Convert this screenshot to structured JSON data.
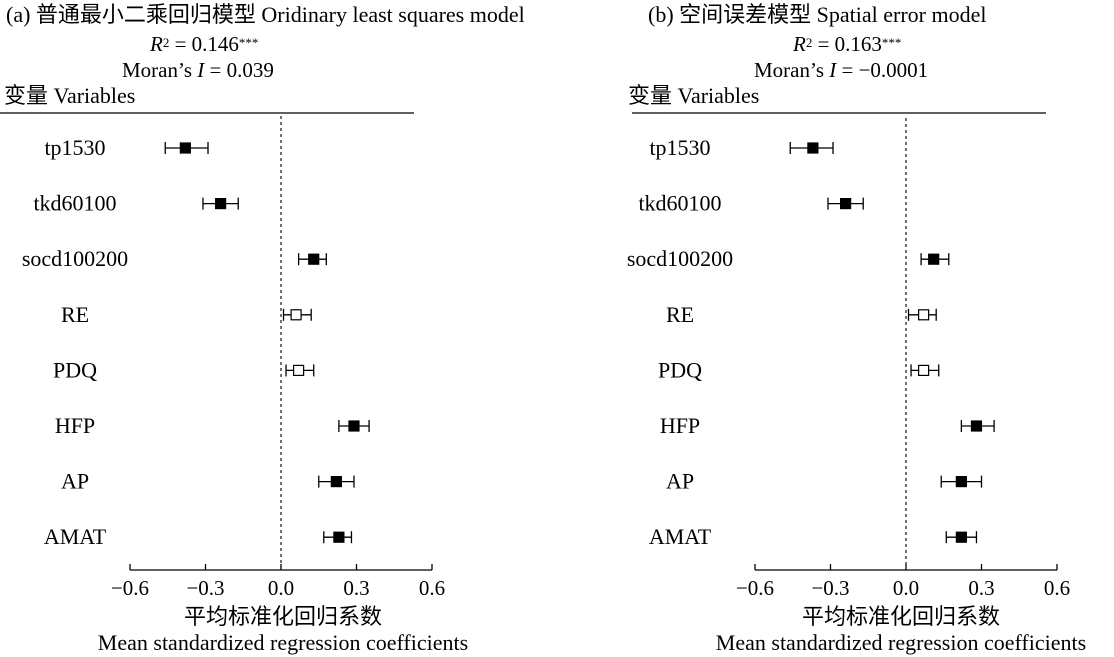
{
  "chart_data": [
    {
      "type": "forest",
      "panel_label": "(a)",
      "title": "普通最小二乘回归模型 Oridinary least squares model",
      "r2": {
        "label": "R",
        "sup": "2",
        "eq": " = 0.146",
        "stars": "***"
      },
      "moran": {
        "label": "Moran’s ",
        "var": "I",
        "eq": " = 0.039"
      },
      "variables_header": "变量 Variables",
      "xlabel_cn": "平均标准化回归系数",
      "xlabel_en": "Mean standardized regression coefficients",
      "xlim": [
        -0.6,
        0.6
      ],
      "ticks": [
        -0.6,
        -0.3,
        0.0,
        0.3,
        0.6
      ],
      "tick_labels": [
        "−0.6",
        "−0.3",
        "0.0",
        "0.3",
        "0.6"
      ],
      "reference_line": 0,
      "rows": [
        {
          "variable": "tp1530",
          "estimate": -0.38,
          "lower": -0.46,
          "upper": -0.29,
          "significant": true
        },
        {
          "variable": "tkd60100",
          "estimate": -0.24,
          "lower": -0.31,
          "upper": -0.17,
          "significant": true
        },
        {
          "variable": "socd100200",
          "estimate": 0.13,
          "lower": 0.07,
          "upper": 0.18,
          "significant": true
        },
        {
          "variable": "RE",
          "estimate": 0.06,
          "lower": 0.01,
          "upper": 0.12,
          "significant": false
        },
        {
          "variable": "PDQ",
          "estimate": 0.07,
          "lower": 0.02,
          "upper": 0.13,
          "significant": false
        },
        {
          "variable": "HFP",
          "estimate": 0.29,
          "lower": 0.23,
          "upper": 0.35,
          "significant": true
        },
        {
          "variable": "AP",
          "estimate": 0.22,
          "lower": 0.15,
          "upper": 0.29,
          "significant": true
        },
        {
          "variable": "AMAT",
          "estimate": 0.23,
          "lower": 0.17,
          "upper": 0.28,
          "significant": true
        }
      ]
    },
    {
      "type": "forest",
      "panel_label": "(b)",
      "title": "空间误差模型 Spatial error model",
      "r2": {
        "label": "R",
        "sup": "2",
        "eq": " = 0.163",
        "stars": "***"
      },
      "moran": {
        "label": "Moran’s ",
        "var": "I",
        "eq": " = −0.0001"
      },
      "variables_header": "变量 Variables",
      "xlabel_cn": "平均标准化回归系数",
      "xlabel_en": "Mean standardized regression coefficients",
      "xlim": [
        -0.6,
        0.6
      ],
      "ticks": [
        -0.6,
        -0.3,
        0.0,
        0.3,
        0.6
      ],
      "tick_labels": [
        "−0.6",
        "−0.3",
        "0.0",
        "0.3",
        "0.6"
      ],
      "reference_line": 0,
      "rows": [
        {
          "variable": "tp1530",
          "estimate": -0.37,
          "lower": -0.46,
          "upper": -0.29,
          "significant": true
        },
        {
          "variable": "tkd60100",
          "estimate": -0.24,
          "lower": -0.31,
          "upper": -0.17,
          "significant": true
        },
        {
          "variable": "socd100200",
          "estimate": 0.11,
          "lower": 0.06,
          "upper": 0.17,
          "significant": true
        },
        {
          "variable": "RE",
          "estimate": 0.07,
          "lower": 0.01,
          "upper": 0.12,
          "significant": false
        },
        {
          "variable": "PDQ",
          "estimate": 0.07,
          "lower": 0.02,
          "upper": 0.13,
          "significant": false
        },
        {
          "variable": "HFP",
          "estimate": 0.28,
          "lower": 0.22,
          "upper": 0.35,
          "significant": true
        },
        {
          "variable": "AP",
          "estimate": 0.22,
          "lower": 0.14,
          "upper": 0.3,
          "significant": true
        },
        {
          "variable": "AMAT",
          "estimate": 0.22,
          "lower": 0.16,
          "upper": 0.28,
          "significant": true
        }
      ]
    }
  ]
}
